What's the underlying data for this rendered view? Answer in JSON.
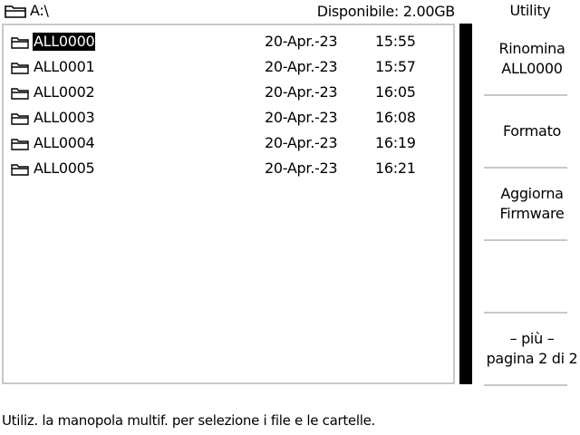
{
  "header": {
    "drive_icon": "drive-icon",
    "path": "A:\\",
    "free_space": "Disponibile: 2.00GB"
  },
  "files": [
    {
      "name": "ALL0000",
      "date": "20-Apr.-23",
      "time": "15:55",
      "selected": true
    },
    {
      "name": "ALL0001",
      "date": "20-Apr.-23",
      "time": "15:57",
      "selected": false
    },
    {
      "name": "ALL0002",
      "date": "20-Apr.-23",
      "time": "16:05",
      "selected": false
    },
    {
      "name": "ALL0003",
      "date": "20-Apr.-23",
      "time": "16:08",
      "selected": false
    },
    {
      "name": "ALL0004",
      "date": "20-Apr.-23",
      "time": "16:19",
      "selected": false
    },
    {
      "name": "ALL0005",
      "date": "20-Apr.-23",
      "time": "16:21",
      "selected": false
    }
  ],
  "sidebar": {
    "title": "Utility",
    "buttons": [
      {
        "line1": "Rinomina",
        "line2": "ALL0000"
      },
      {
        "line1": "Formato",
        "line2": ""
      },
      {
        "line1": "Aggiorna",
        "line2": "Firmware"
      },
      {
        "line1": "",
        "line2": ""
      },
      {
        "line1": "– più –",
        "line2": "pagina 2 di 2"
      }
    ]
  },
  "footer": {
    "hint": "Utiliz. la manopola multif. per selezione i file e le cartelle."
  },
  "colors": {
    "background": "#ffffff",
    "text": "#000000",
    "border": "#c8c8c8",
    "selection": "#000000"
  }
}
